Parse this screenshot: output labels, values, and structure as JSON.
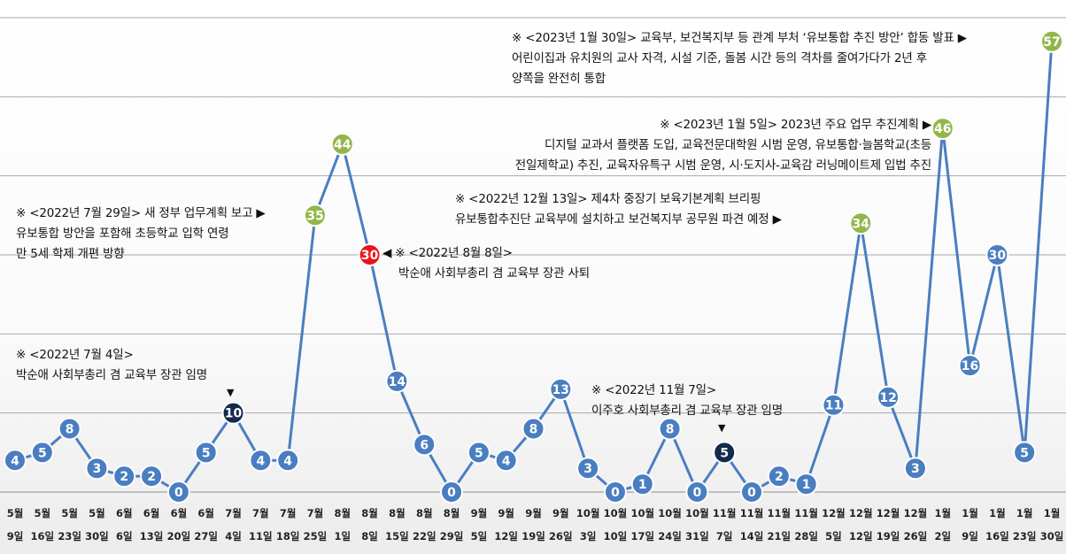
{
  "chart_data": {
    "type": "line",
    "title": "",
    "xlabel": "",
    "ylabel": "",
    "ylim": [
      0,
      60
    ],
    "grid": true,
    "x_months": [
      "5월",
      "5월",
      "5월",
      "5월",
      "6월",
      "6월",
      "6월",
      "6월",
      "7월",
      "7월",
      "7월",
      "7월",
      "8월",
      "8월",
      "8월",
      "8월",
      "8월",
      "9월",
      "9월",
      "9월",
      "9월",
      "10월",
      "10월",
      "10월",
      "10월",
      "10월",
      "11월",
      "11월",
      "11월",
      "11월",
      "12월",
      "12월",
      "12월",
      "12월",
      "1월",
      "1월",
      "1월",
      "1월",
      "1월"
    ],
    "x_days": [
      "9일",
      "16일",
      "23일",
      "30일",
      "6일",
      "13일",
      "20일",
      "27일",
      "4일",
      "11일",
      "18일",
      "25일",
      "1일",
      "8일",
      "15일",
      "22일",
      "29일",
      "5일",
      "12일",
      "19일",
      "26일",
      "3일",
      "10일",
      "17일",
      "24일",
      "31일",
      "7일",
      "14일",
      "21일",
      "28일",
      "5일",
      "12일",
      "19일",
      "26일",
      "2일",
      "9일",
      "16일",
      "23일",
      "30일"
    ],
    "values": [
      4,
      5,
      8,
      3,
      2,
      2,
      0,
      5,
      10,
      4,
      4,
      35,
      44,
      30,
      14,
      6,
      0,
      5,
      4,
      8,
      13,
      3,
      0,
      1,
      8,
      0,
      5,
      0,
      2,
      1,
      11,
      34,
      12,
      3,
      46,
      16,
      30,
      5,
      57
    ],
    "point_styles": [
      "b",
      "b",
      "b",
      "b",
      "b",
      "b",
      "b",
      "b",
      "n",
      "b",
      "b",
      "g",
      "g",
      "r",
      "b",
      "b",
      "b",
      "b",
      "b",
      "b",
      "b",
      "b",
      "b",
      "b",
      "b",
      "b",
      "n",
      "b",
      "b",
      "b",
      "b",
      "g",
      "b",
      "b",
      "g",
      "b",
      "b",
      "b",
      "g"
    ],
    "colors": {
      "line": "#4a7ec0",
      "marker_blue": "#4a7ec0",
      "marker_green": "#93b64a",
      "marker_red": "#e8141b",
      "marker_navy": "#13294d",
      "grid": "#a9a9a9"
    },
    "annotations": [
      {
        "lines": [
          "※ <2023년 1월 30일> 교육부, 보건복지부 등 관계 부처 ‘유보통합 추진 방안’ 합동 발표 ▶",
          "어린이집과 유치원의 교사 자격, 시설 기준, 돌봄 시간 등의 격차를 줄여가다가 2년 후",
          "양쪽을 완전히 통합"
        ]
      },
      {
        "lines": [
          "※ <2023년 1월 5일> 2023년 주요 업무 추진계획 ▶",
          "디지털 교과서 플랫폼 도입, 교육전문대학원 시범 운영, 유보통합·늘봄학교(초등",
          "전일제학교) 추진, 교육자유특구 시범 운영, 시·도지사-교육감 러닝메이트제 입법 추진"
        ]
      },
      {
        "lines": [
          "※ <2022년 12월 13일> 제4차 중장기 보육기본계획 브리핑",
          "유보통합추진단 교육부에 설치하고 보건복지부 공무원 파견 예정 ▶"
        ]
      },
      {
        "lines": [
          "※ <2022년 7월 29일> 새 정부 업무계획 보고 ▶",
          "유보통합 방안을 포함해 초등학교 입학 연령",
          "만 5세 학제 개편 방향"
        ]
      },
      {
        "lines": [
          "◀ ※ <2022년 8월 8일>",
          "박순애 사회부총리 겸 교육부 장관 사퇴"
        ]
      },
      {
        "lines": [
          "※ <2022년 7월 4일>",
          "박순애 사회부총리 겸 교육부 장관 임명",
          "▼"
        ]
      },
      {
        "lines": [
          "※ <2022년 11월 7일>",
          "이주호 사회부총리 겸 교육부 장관 임명",
          "▼"
        ]
      }
    ]
  }
}
